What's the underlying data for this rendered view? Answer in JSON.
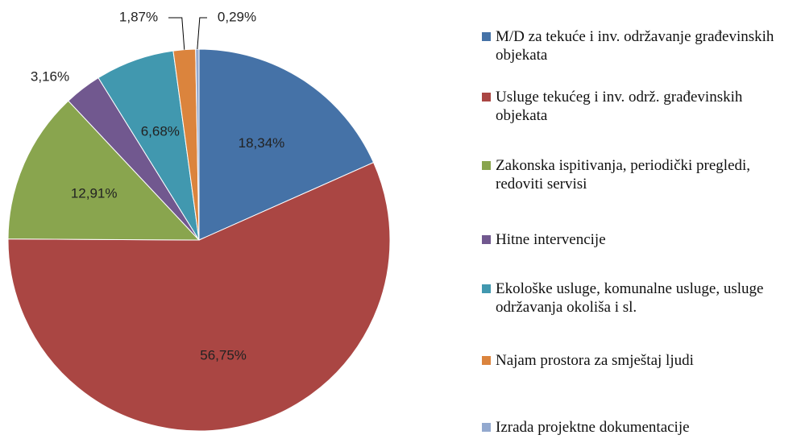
{
  "chart_data": {
    "type": "pie",
    "categories": [
      "M/D za tekuće i inv. održavanje građevinskih objekata",
      "Usluge tekućeg i inv. održ. građevinskih objekata",
      "Zakonska ispitivanja, periodički pregledi, redoviti servisi",
      "Hitne intervencije",
      "Ekološke usluge, komunalne usluge, usluge održavanja okoliša i sl.",
      "Najam prostora za smještaj ljudi",
      "Izrada projektne dokumentacije"
    ],
    "values": [
      18.34,
      56.75,
      12.91,
      3.16,
      6.68,
      1.87,
      0.29
    ],
    "value_labels": [
      "18,34%",
      "56,75%",
      "12,91%",
      "3,16%",
      "6,68%",
      "1,87%",
      "0,29%"
    ],
    "colors": [
      "#4572a7",
      "#aa4643",
      "#89a54e",
      "#71588f",
      "#4198af",
      "#db843d",
      "#93a9cf"
    ],
    "legend": "right"
  }
}
